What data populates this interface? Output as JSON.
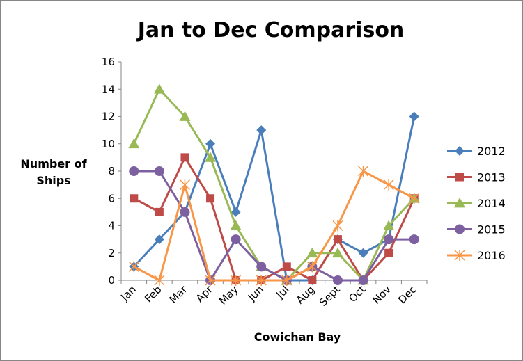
{
  "chart_data": {
    "type": "line",
    "title": "Jan to Dec Comparison",
    "xlabel": "Cowichan Bay",
    "ylabel": [
      "Number of",
      "Ships"
    ],
    "ylim": [
      0,
      16
    ],
    "yticks": [
      0,
      2,
      4,
      6,
      8,
      10,
      12,
      14,
      16
    ],
    "categories": [
      "Jan",
      "Feb",
      "Mar",
      "Apr",
      "May",
      "Jun",
      "Jul",
      "Aug",
      "Sept",
      "Oct",
      "Nov",
      "Dec"
    ],
    "grid": false,
    "legend_position": "right",
    "series": [
      {
        "name": "2012",
        "color": "#4A7EBB",
        "marker": "diamond",
        "values": [
          1,
          3,
          5,
          10,
          5,
          11,
          0,
          0,
          3,
          2,
          3,
          12
        ]
      },
      {
        "name": "2013",
        "color": "#BE4B48",
        "marker": "square",
        "values": [
          6,
          5,
          9,
          6,
          0,
          0,
          1,
          0,
          3,
          0,
          2,
          6
        ]
      },
      {
        "name": "2014",
        "color": "#98B954",
        "marker": "triangle",
        "values": [
          10,
          14,
          12,
          9,
          4,
          1,
          0,
          2,
          2,
          0,
          4,
          6
        ]
      },
      {
        "name": "2015",
        "color": "#7D60A0",
        "marker": "circle",
        "values": [
          8,
          8,
          5,
          0,
          3,
          1,
          0,
          1,
          0,
          0,
          3,
          3
        ]
      },
      {
        "name": "2016",
        "color": "#F79646",
        "marker": "star",
        "values": [
          1,
          0,
          7,
          0,
          0,
          0,
          0,
          1,
          4,
          8,
          7,
          6
        ]
      }
    ]
  }
}
